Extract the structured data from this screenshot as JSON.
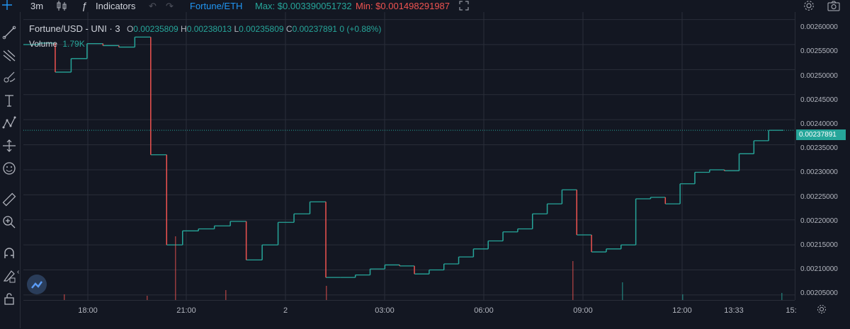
{
  "toolbar": {
    "interval": "3m",
    "indicators_label": "Indicators",
    "symbol_compare": "Fortune/ETH",
    "max_label": "Max: $0.003390051732",
    "min_label": "Min: $0.001498291987"
  },
  "legend": {
    "title": "Fortune/USD - UNI · 3",
    "o_key": "O",
    "o_val": "0.00235809",
    "h_key": "H",
    "h_val": "0.00238013",
    "l_key": "L",
    "l_val": "0.00235809",
    "c_key": "C",
    "c_val": "0.00237891",
    "change": "0 (+0.88%)",
    "volume_key": "Volume",
    "volume_val": "1.79K"
  },
  "price_axis": {
    "labels": [
      "0.00260000",
      "0.00255000",
      "0.00250000",
      "0.00245000",
      "0.00240000",
      "0.00235000",
      "0.00230000",
      "0.00225000",
      "0.00220000",
      "0.00215000",
      "0.00210000",
      "0.00205000"
    ],
    "last_price": "0.00237891"
  },
  "time_axis": {
    "labels": [
      "18:00",
      "21:00",
      "2",
      "03:00",
      "06:00",
      "09:00",
      "12:00",
      "13:33",
      "15:"
    ]
  },
  "colors": {
    "up": "#26a69a",
    "down": "#ef5350",
    "background": "#131722",
    "grid": "#2a2e39",
    "max": "#26a69a",
    "min": "#ef5350",
    "accent": "#2196f3"
  },
  "chart_data": {
    "type": "line",
    "title": "Fortune/USD - UNI · 3",
    "ylim": [
      0.00204,
      0.002615
    ],
    "steps": [
      [
        0.00255,
        0.002553,
        0.002495,
        0.002522,
        0.002552,
        0.002548,
        0.002545,
        0.002565,
        0.00233,
        0.00215,
        0.002178,
        0.002182,
        0.002188,
        0.002197,
        0.00212,
        0.00215,
        0.002195,
        0.002212,
        0.002236
      ],
      [
        0.002085,
        0.002085,
        0.00209,
        0.002102,
        0.00211,
        0.002108,
        0.002092,
        0.0021,
        0.002112,
        0.002126,
        0.002142,
        0.002158,
        0.002176,
        0.002182,
        0.002212,
        0.002232,
        0.00226,
        0.00217,
        0.002136,
        0.002142,
        0.00215,
        0.002242,
        0.002245,
        0.002232,
        0.002272,
        0.002295,
        0.0023,
        0.002298,
        0.002332,
        0.002358,
        0.00237891
      ]
    ]
  },
  "sidebar": {
    "tools": [
      "crosshair-icon",
      "trendline-icon",
      "fib-icon",
      "brush-icon",
      "text-icon",
      "pattern-icon",
      "measure-icon",
      "emoji-icon",
      "ruler-icon",
      "zoom-icon",
      "magnet-icon",
      "lock-drawings-icon",
      "lock-icon"
    ]
  }
}
